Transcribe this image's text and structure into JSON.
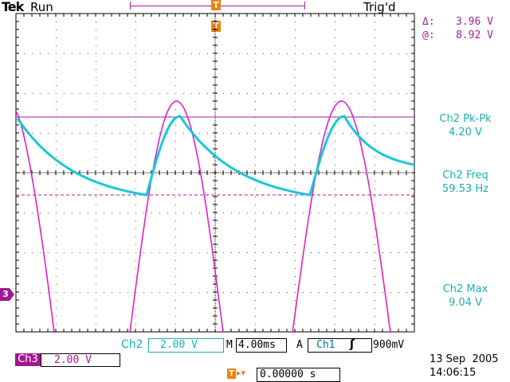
{
  "header": {
    "brand": "Tek",
    "run_state": "Run",
    "trigger_status": "Trig'd",
    "trigger_marker": "T"
  },
  "cursor": {
    "delta_symbol": "Δ:",
    "delta_value": "3.96 V",
    "at_symbol": "@:",
    "at_value": "8.92 V"
  },
  "measurements": [
    {
      "label": "Ch2 Pk-Pk",
      "value": "4.20 V"
    },
    {
      "label": "Ch2 Freq",
      "value": "59.53 Hz"
    },
    {
      "label": "Ch2 Max",
      "value": "9.04 V"
    }
  ],
  "channel_marker": "3",
  "bottom": {
    "ch2_label": "Ch2",
    "ch2_scale": "2.00 V",
    "timebase_prefix": "M",
    "timebase": "4.00ms",
    "trig_mode": "A",
    "trig_source": "Ch1",
    "trig_slope_symbol": "ʃ",
    "trig_level": "900mV",
    "ch3_label": "Ch3",
    "ch3_scale": "2.00 V",
    "trig_pos_symbol": "T",
    "trig_pos_arrow": "▸▾",
    "trig_pos_value": "0.00000 s",
    "date": "13 Sep  2005",
    "time": "14:06:15"
  },
  "colors": {
    "ch2_cyan": "#18c8d8",
    "ch3_magenta": "#e020c8",
    "accent_orange": "#f08010",
    "cursor_purple": "#a020a0",
    "ch3_badge": "#a01890"
  }
}
